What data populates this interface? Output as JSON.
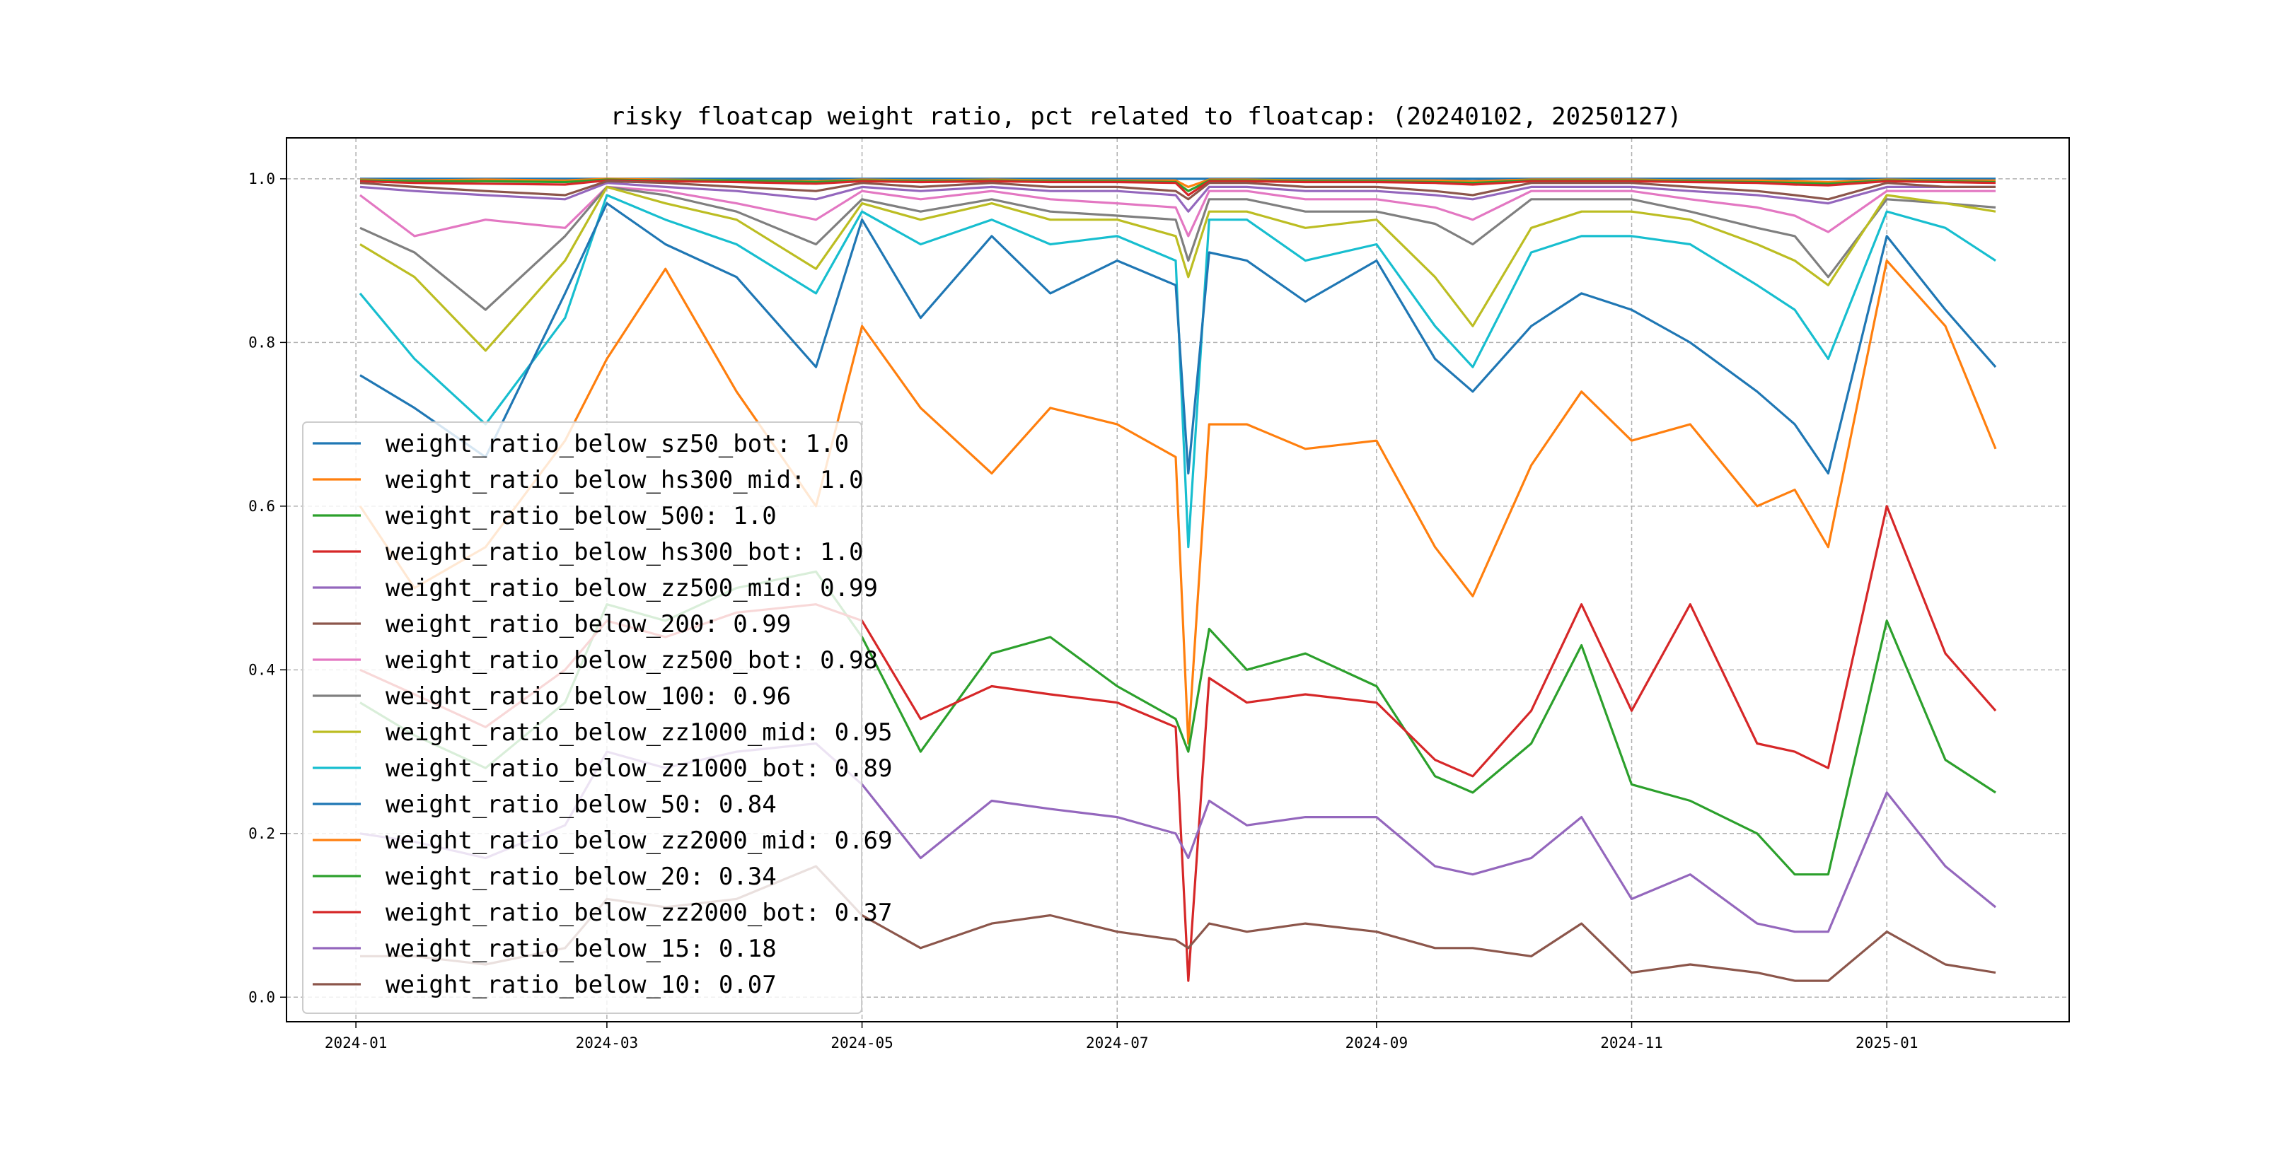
{
  "chart_data": {
    "type": "line",
    "title": "risky floatcap weight ratio, pct related to floatcap: (20240102, 20250127)",
    "xlabel": "",
    "ylabel": "",
    "x_range": [
      "2024-01-02",
      "2025-01-27"
    ],
    "ylim": [
      -0.03,
      1.05
    ],
    "grid": true,
    "legend_placement": "lower left",
    "x_ticks": [
      "2024-01",
      "2024-03",
      "2024-05",
      "2024-07",
      "2024-09",
      "2024-11",
      "2025-01"
    ],
    "y_ticks": [
      "0.0",
      "0.2",
      "0.4",
      "0.6",
      "0.8",
      "1.0"
    ],
    "x": [
      "2024-01-02",
      "2024-01-15",
      "2024-02-01",
      "2024-02-20",
      "2024-03-01",
      "2024-03-15",
      "2024-04-01",
      "2024-04-20",
      "2024-05-01",
      "2024-05-15",
      "2024-06-01",
      "2024-06-15",
      "2024-07-01",
      "2024-07-15",
      "2024-07-18",
      "2024-07-23",
      "2024-08-01",
      "2024-08-15",
      "2024-09-01",
      "2024-09-15",
      "2024-09-24",
      "2024-10-08",
      "2024-10-20",
      "2024-11-01",
      "2024-11-15",
      "2024-12-01",
      "2024-12-10",
      "2024-12-18",
      "2025-01-01",
      "2025-01-15",
      "2025-01-27"
    ],
    "series": [
      {
        "name": "weight_ratio_below_sz50_bot",
        "legend_value": "1.0",
        "color": "#1f77b4",
        "values": [
          1.0,
          1.0,
          1.0,
          1.0,
          1.0,
          1.0,
          1.0,
          1.0,
          1.0,
          1.0,
          1.0,
          1.0,
          1.0,
          1.0,
          1.0,
          1.0,
          1.0,
          1.0,
          1.0,
          1.0,
          1.0,
          1.0,
          1.0,
          1.0,
          1.0,
          1.0,
          1.0,
          1.0,
          1.0,
          1.0,
          1.0
        ]
      },
      {
        "name": "weight_ratio_below_hs300_mid",
        "legend_value": "1.0",
        "color": "#ff7f0e",
        "values": [
          0.999,
          0.998,
          0.999,
          0.998,
          1.0,
          0.999,
          0.998,
          0.997,
          0.999,
          0.998,
          0.999,
          0.998,
          0.998,
          0.998,
          0.99,
          0.999,
          0.999,
          0.998,
          0.998,
          0.998,
          0.997,
          0.999,
          0.999,
          0.999,
          0.998,
          0.998,
          0.997,
          0.996,
          0.999,
          0.998,
          0.998
        ]
      },
      {
        "name": "weight_ratio_below_500",
        "legend_value": "1.0",
        "color": "#2ca02c",
        "values": [
          0.998,
          0.997,
          0.997,
          0.996,
          0.999,
          0.998,
          0.998,
          0.996,
          0.998,
          0.997,
          0.998,
          0.997,
          0.997,
          0.996,
          0.985,
          0.998,
          0.998,
          0.997,
          0.997,
          0.996,
          0.995,
          0.998,
          0.998,
          0.998,
          0.997,
          0.996,
          0.995,
          0.994,
          0.998,
          0.997,
          0.996
        ]
      },
      {
        "name": "weight_ratio_below_hs300_bot",
        "legend_value": "1.0",
        "color": "#d62728",
        "values": [
          0.997,
          0.995,
          0.994,
          0.993,
          0.998,
          0.997,
          0.996,
          0.994,
          0.997,
          0.996,
          0.997,
          0.996,
          0.996,
          0.995,
          0.98,
          0.997,
          0.997,
          0.996,
          0.996,
          0.995,
          0.993,
          0.997,
          0.997,
          0.997,
          0.996,
          0.995,
          0.993,
          0.992,
          0.997,
          0.996,
          0.995
        ]
      },
      {
        "name": "weight_ratio_below_zz500_mid",
        "legend_value": "0.99",
        "color": "#9467bd",
        "values": [
          0.99,
          0.985,
          0.98,
          0.975,
          0.995,
          0.99,
          0.985,
          0.975,
          0.99,
          0.985,
          0.99,
          0.985,
          0.985,
          0.98,
          0.96,
          0.99,
          0.99,
          0.985,
          0.985,
          0.98,
          0.975,
          0.99,
          0.99,
          0.99,
          0.985,
          0.98,
          0.975,
          0.97,
          0.99,
          0.99,
          0.99
        ]
      },
      {
        "name": "weight_ratio_below_200",
        "legend_value": "0.99",
        "color": "#8c564b",
        "values": [
          0.995,
          0.99,
          0.985,
          0.98,
          0.997,
          0.995,
          0.99,
          0.985,
          0.995,
          0.99,
          0.995,
          0.99,
          0.99,
          0.985,
          0.975,
          0.995,
          0.995,
          0.99,
          0.99,
          0.985,
          0.98,
          0.995,
          0.995,
          0.995,
          0.99,
          0.985,
          0.98,
          0.975,
          0.995,
          0.99,
          0.99
        ]
      },
      {
        "name": "weight_ratio_below_zz500_bot",
        "legend_value": "0.98",
        "color": "#e377c2",
        "values": [
          0.98,
          0.93,
          0.95,
          0.94,
          0.99,
          0.985,
          0.97,
          0.95,
          0.985,
          0.975,
          0.985,
          0.975,
          0.97,
          0.965,
          0.93,
          0.985,
          0.985,
          0.975,
          0.975,
          0.965,
          0.95,
          0.985,
          0.985,
          0.985,
          0.975,
          0.965,
          0.955,
          0.935,
          0.985,
          0.985,
          0.985
        ]
      },
      {
        "name": "weight_ratio_below_100",
        "legend_value": "0.96",
        "color": "#7f7f7f",
        "values": [
          0.94,
          0.91,
          0.84,
          0.93,
          0.99,
          0.98,
          0.96,
          0.92,
          0.975,
          0.96,
          0.975,
          0.96,
          0.955,
          0.95,
          0.9,
          0.975,
          0.975,
          0.96,
          0.96,
          0.945,
          0.92,
          0.975,
          0.975,
          0.975,
          0.96,
          0.94,
          0.93,
          0.88,
          0.975,
          0.97,
          0.965
        ]
      },
      {
        "name": "weight_ratio_below_zz1000_mid",
        "legend_value": "0.95",
        "color": "#bcbd22",
        "values": [
          0.92,
          0.88,
          0.79,
          0.9,
          0.99,
          0.97,
          0.95,
          0.89,
          0.97,
          0.95,
          0.97,
          0.95,
          0.95,
          0.93,
          0.88,
          0.96,
          0.96,
          0.94,
          0.95,
          0.88,
          0.82,
          0.94,
          0.96,
          0.96,
          0.95,
          0.92,
          0.9,
          0.87,
          0.98,
          0.97,
          0.96
        ]
      },
      {
        "name": "weight_ratio_below_zz1000_bot",
        "legend_value": "0.89",
        "color": "#17becf",
        "values": [
          0.86,
          0.78,
          0.7,
          0.83,
          0.98,
          0.95,
          0.92,
          0.86,
          0.96,
          0.92,
          0.95,
          0.92,
          0.93,
          0.9,
          0.55,
          0.95,
          0.95,
          0.9,
          0.92,
          0.82,
          0.77,
          0.91,
          0.93,
          0.93,
          0.92,
          0.87,
          0.84,
          0.78,
          0.96,
          0.94,
          0.9
        ]
      },
      {
        "name": "weight_ratio_below_50",
        "legend_value": "0.84",
        "color": "#1f77b4",
        "values": [
          0.76,
          0.72,
          0.66,
          0.86,
          0.97,
          0.92,
          0.88,
          0.77,
          0.95,
          0.83,
          0.93,
          0.86,
          0.9,
          0.87,
          0.64,
          0.91,
          0.9,
          0.85,
          0.9,
          0.78,
          0.74,
          0.82,
          0.86,
          0.84,
          0.8,
          0.74,
          0.7,
          0.64,
          0.93,
          0.84,
          0.77
        ]
      },
      {
        "name": "weight_ratio_below_zz2000_mid",
        "legend_value": "0.69",
        "color": "#ff7f0e",
        "values": [
          0.6,
          0.5,
          0.55,
          0.68,
          0.78,
          0.89,
          0.74,
          0.6,
          0.82,
          0.72,
          0.64,
          0.72,
          0.7,
          0.66,
          0.31,
          0.7,
          0.7,
          0.67,
          0.68,
          0.55,
          0.49,
          0.65,
          0.74,
          0.68,
          0.7,
          0.6,
          0.62,
          0.55,
          0.9,
          0.82,
          0.67
        ]
      },
      {
        "name": "weight_ratio_below_20",
        "legend_value": "0.34",
        "color": "#2ca02c",
        "values": [
          0.36,
          0.32,
          0.28,
          0.36,
          0.48,
          0.46,
          0.5,
          0.52,
          0.44,
          0.3,
          0.42,
          0.44,
          0.38,
          0.34,
          0.3,
          0.45,
          0.4,
          0.42,
          0.38,
          0.27,
          0.25,
          0.31,
          0.43,
          0.26,
          0.24,
          0.2,
          0.15,
          0.15,
          0.46,
          0.29,
          0.25
        ]
      },
      {
        "name": "weight_ratio_below_zz2000_bot",
        "legend_value": "0.37",
        "color": "#d62728",
        "values": [
          0.4,
          0.37,
          0.33,
          0.4,
          0.46,
          0.44,
          0.47,
          0.48,
          0.46,
          0.34,
          0.38,
          0.37,
          0.36,
          0.33,
          0.02,
          0.39,
          0.36,
          0.37,
          0.36,
          0.29,
          0.27,
          0.35,
          0.48,
          0.35,
          0.48,
          0.31,
          0.3,
          0.28,
          0.6,
          0.42,
          0.35
        ]
      },
      {
        "name": "weight_ratio_below_15",
        "legend_value": "0.18",
        "color": "#9467bd",
        "values": [
          0.2,
          0.19,
          0.17,
          0.21,
          0.3,
          0.28,
          0.3,
          0.31,
          0.26,
          0.17,
          0.24,
          0.23,
          0.22,
          0.2,
          0.17,
          0.24,
          0.21,
          0.22,
          0.22,
          0.16,
          0.15,
          0.17,
          0.22,
          0.12,
          0.15,
          0.09,
          0.08,
          0.08,
          0.25,
          0.16,
          0.11
        ]
      },
      {
        "name": "weight_ratio_below_10",
        "legend_value": "0.07",
        "color": "#8c564b",
        "values": [
          0.05,
          0.05,
          0.04,
          0.06,
          0.12,
          0.11,
          0.12,
          0.16,
          0.1,
          0.06,
          0.09,
          0.1,
          0.08,
          0.07,
          0.06,
          0.09,
          0.08,
          0.09,
          0.08,
          0.06,
          0.06,
          0.05,
          0.09,
          0.03,
          0.04,
          0.03,
          0.02,
          0.02,
          0.08,
          0.04,
          0.03
        ]
      }
    ]
  }
}
